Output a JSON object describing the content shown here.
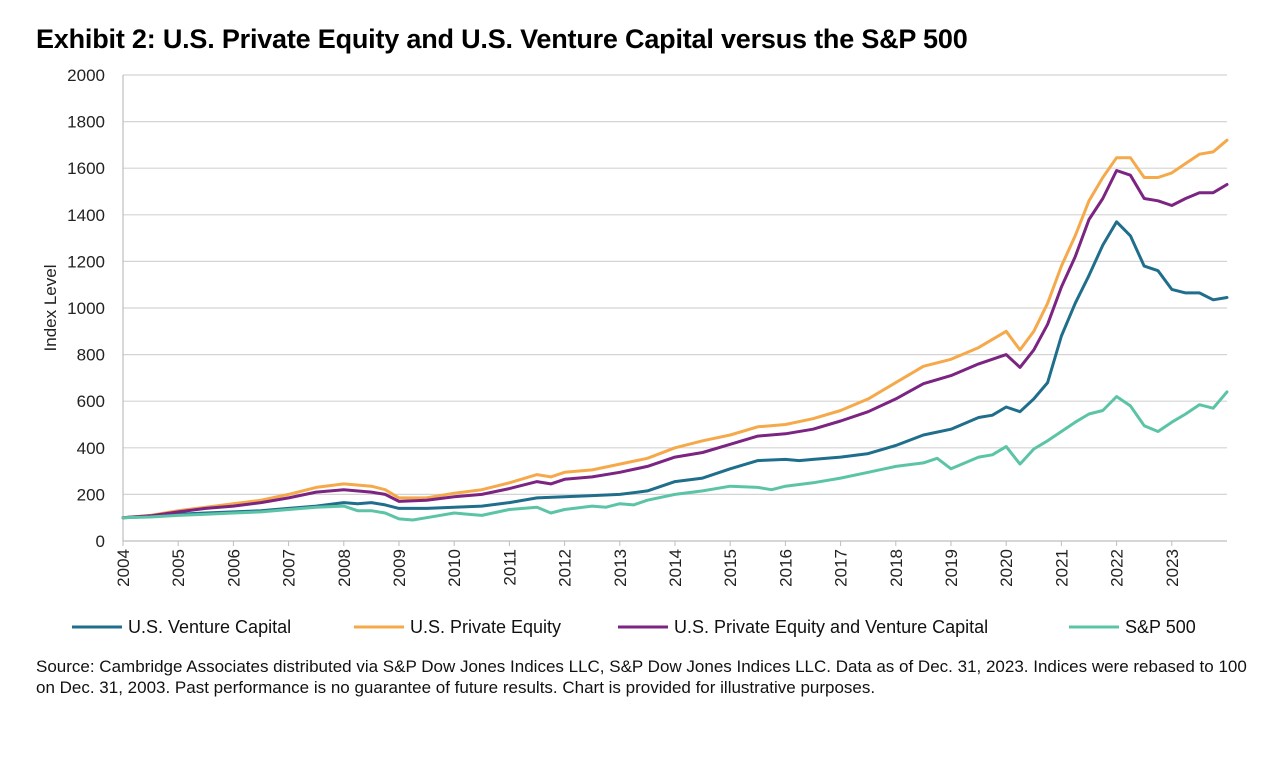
{
  "title": "Exhibit 2: U.S. Private Equity and U.S. Venture Capital versus the S&P 500",
  "source": "Source: Cambridge Associates distributed via S&P Dow Jones Indices LLC, S&P Dow Jones Indices LLC. Data as of Dec. 31, 2023. Indices were rebased to 100 on Dec. 31, 2003. Past performance is no guarantee of future results. Chart is provided for illustrative purposes.",
  "chart_data": {
    "type": "line",
    "ylabel": "Index Level",
    "xlabel": "",
    "ylim": [
      0,
      2000
    ],
    "yticks": [
      0,
      200,
      400,
      600,
      800,
      1000,
      1200,
      1400,
      1600,
      1800,
      2000
    ],
    "xticks": [
      "2004",
      "2005",
      "2006",
      "2007",
      "2008",
      "2009",
      "2010",
      "2011",
      "2012",
      "2013",
      "2014",
      "2015",
      "2016",
      "2017",
      "2018",
      "2019",
      "2020",
      "2021",
      "2022",
      "2023"
    ],
    "x_range": [
      "2004",
      "2023-Q4"
    ],
    "grid": true,
    "legend": "bottom",
    "series": [
      {
        "name": "U.S. Venture Capital",
        "color": "#1f6e8c",
        "points": [
          [
            2004,
            100
          ],
          [
            2004.5,
            105
          ],
          [
            2005,
            115
          ],
          [
            2005.5,
            120
          ],
          [
            2006,
            125
          ],
          [
            2006.5,
            130
          ],
          [
            2007,
            140
          ],
          [
            2007.5,
            150
          ],
          [
            2008,
            165
          ],
          [
            2008.25,
            160
          ],
          [
            2008.5,
            165
          ],
          [
            2008.75,
            155
          ],
          [
            2009,
            140
          ],
          [
            2009.5,
            140
          ],
          [
            2010,
            145
          ],
          [
            2010.5,
            150
          ],
          [
            2011,
            165
          ],
          [
            2011.5,
            185
          ],
          [
            2012,
            190
          ],
          [
            2012.5,
            195
          ],
          [
            2013,
            200
          ],
          [
            2013.5,
            215
          ],
          [
            2014,
            255
          ],
          [
            2014.5,
            270
          ],
          [
            2015,
            310
          ],
          [
            2015.5,
            345
          ],
          [
            2016,
            350
          ],
          [
            2016.25,
            345
          ],
          [
            2016.5,
            350
          ],
          [
            2017,
            360
          ],
          [
            2017.5,
            375
          ],
          [
            2018,
            410
          ],
          [
            2018.5,
            455
          ],
          [
            2019,
            480
          ],
          [
            2019.5,
            530
          ],
          [
            2019.75,
            540
          ],
          [
            2020,
            575
          ],
          [
            2020.25,
            555
          ],
          [
            2020.5,
            610
          ],
          [
            2020.75,
            680
          ],
          [
            2021,
            880
          ],
          [
            2021.25,
            1020
          ],
          [
            2021.5,
            1140
          ],
          [
            2021.75,
            1270
          ],
          [
            2022,
            1370
          ],
          [
            2022.25,
            1310
          ],
          [
            2022.5,
            1180
          ],
          [
            2022.75,
            1160
          ],
          [
            2023,
            1080
          ],
          [
            2023.25,
            1065
          ],
          [
            2023.5,
            1065
          ],
          [
            2023.75,
            1035
          ],
          [
            2024,
            1045
          ]
        ]
      },
      {
        "name": "U.S. Private Equity",
        "color": "#f5a94a",
        "points": [
          [
            2004,
            100
          ],
          [
            2004.5,
            110
          ],
          [
            2005,
            130
          ],
          [
            2005.5,
            145
          ],
          [
            2006,
            160
          ],
          [
            2006.5,
            175
          ],
          [
            2007,
            200
          ],
          [
            2007.5,
            230
          ],
          [
            2008,
            245
          ],
          [
            2008.5,
            235
          ],
          [
            2008.75,
            220
          ],
          [
            2009,
            185
          ],
          [
            2009.5,
            185
          ],
          [
            2010,
            205
          ],
          [
            2010.5,
            220
          ],
          [
            2011,
            250
          ],
          [
            2011.5,
            285
          ],
          [
            2011.75,
            275
          ],
          [
            2012,
            295
          ],
          [
            2012.5,
            305
          ],
          [
            2013,
            330
          ],
          [
            2013.5,
            355
          ],
          [
            2014,
            400
          ],
          [
            2014.5,
            430
          ],
          [
            2015,
            455
          ],
          [
            2015.5,
            490
          ],
          [
            2016,
            500
          ],
          [
            2016.5,
            525
          ],
          [
            2017,
            560
          ],
          [
            2017.5,
            610
          ],
          [
            2018,
            680
          ],
          [
            2018.5,
            750
          ],
          [
            2018.75,
            765
          ],
          [
            2019,
            780
          ],
          [
            2019.5,
            830
          ],
          [
            2020,
            900
          ],
          [
            2020.25,
            820
          ],
          [
            2020.5,
            900
          ],
          [
            2020.75,
            1020
          ],
          [
            2021,
            1180
          ],
          [
            2021.25,
            1310
          ],
          [
            2021.5,
            1460
          ],
          [
            2021.75,
            1560
          ],
          [
            2022,
            1645
          ],
          [
            2022.25,
            1645
          ],
          [
            2022.5,
            1560
          ],
          [
            2022.75,
            1560
          ],
          [
            2023,
            1580
          ],
          [
            2023.25,
            1620
          ],
          [
            2023.5,
            1660
          ],
          [
            2023.75,
            1670
          ],
          [
            2024,
            1720
          ]
        ]
      },
      {
        "name": "U.S. Private Equity and Venture Capital",
        "color": "#7b2482",
        "points": [
          [
            2004,
            100
          ],
          [
            2004.5,
            108
          ],
          [
            2005,
            125
          ],
          [
            2005.5,
            140
          ],
          [
            2006,
            150
          ],
          [
            2006.5,
            165
          ],
          [
            2007,
            185
          ],
          [
            2007.5,
            210
          ],
          [
            2008,
            220
          ],
          [
            2008.5,
            210
          ],
          [
            2008.75,
            200
          ],
          [
            2009,
            170
          ],
          [
            2009.5,
            175
          ],
          [
            2010,
            190
          ],
          [
            2010.5,
            200
          ],
          [
            2011,
            225
          ],
          [
            2011.5,
            255
          ],
          [
            2011.75,
            245
          ],
          [
            2012,
            265
          ],
          [
            2012.5,
            275
          ],
          [
            2013,
            295
          ],
          [
            2013.5,
            320
          ],
          [
            2014,
            360
          ],
          [
            2014.5,
            380
          ],
          [
            2015,
            415
          ],
          [
            2015.5,
            450
          ],
          [
            2016,
            460
          ],
          [
            2016.5,
            480
          ],
          [
            2017,
            515
          ],
          [
            2017.5,
            555
          ],
          [
            2018,
            610
          ],
          [
            2018.5,
            675
          ],
          [
            2019,
            710
          ],
          [
            2019.5,
            760
          ],
          [
            2020,
            800
          ],
          [
            2020.25,
            745
          ],
          [
            2020.5,
            820
          ],
          [
            2020.75,
            930
          ],
          [
            2021,
            1090
          ],
          [
            2021.25,
            1220
          ],
          [
            2021.5,
            1380
          ],
          [
            2021.75,
            1470
          ],
          [
            2022,
            1590
          ],
          [
            2022.25,
            1570
          ],
          [
            2022.5,
            1470
          ],
          [
            2022.75,
            1460
          ],
          [
            2023,
            1440
          ],
          [
            2023.25,
            1470
          ],
          [
            2023.5,
            1495
          ],
          [
            2023.75,
            1495
          ],
          [
            2024,
            1530
          ]
        ]
      },
      {
        "name": "S&P 500",
        "color": "#5cc4a6",
        "points": [
          [
            2004,
            100
          ],
          [
            2004.5,
            103
          ],
          [
            2005,
            110
          ],
          [
            2005.5,
            115
          ],
          [
            2006,
            120
          ],
          [
            2006.5,
            125
          ],
          [
            2007,
            135
          ],
          [
            2007.5,
            145
          ],
          [
            2008,
            150
          ],
          [
            2008.25,
            130
          ],
          [
            2008.5,
            130
          ],
          [
            2008.75,
            120
          ],
          [
            2009,
            95
          ],
          [
            2009.25,
            90
          ],
          [
            2009.5,
            100
          ],
          [
            2010,
            120
          ],
          [
            2010.25,
            115
          ],
          [
            2010.5,
            110
          ],
          [
            2011,
            135
          ],
          [
            2011.5,
            145
          ],
          [
            2011.75,
            120
          ],
          [
            2012,
            135
          ],
          [
            2012.5,
            150
          ],
          [
            2012.75,
            145
          ],
          [
            2013,
            160
          ],
          [
            2013.25,
            155
          ],
          [
            2013.5,
            175
          ],
          [
            2014,
            200
          ],
          [
            2014.5,
            215
          ],
          [
            2015,
            235
          ],
          [
            2015.5,
            230
          ],
          [
            2015.75,
            220
          ],
          [
            2016,
            235
          ],
          [
            2016.5,
            250
          ],
          [
            2017,
            270
          ],
          [
            2017.5,
            295
          ],
          [
            2018,
            320
          ],
          [
            2018.5,
            335
          ],
          [
            2018.75,
            355
          ],
          [
            2019,
            310
          ],
          [
            2019.5,
            360
          ],
          [
            2019.75,
            370
          ],
          [
            2020,
            405
          ],
          [
            2020.25,
            330
          ],
          [
            2020.5,
            395
          ],
          [
            2020.75,
            430
          ],
          [
            2021,
            470
          ],
          [
            2021.25,
            510
          ],
          [
            2021.5,
            545
          ],
          [
            2021.75,
            560
          ],
          [
            2022,
            620
          ],
          [
            2022.25,
            580
          ],
          [
            2022.5,
            495
          ],
          [
            2022.75,
            470
          ],
          [
            2023,
            510
          ],
          [
            2023.25,
            545
          ],
          [
            2023.5,
            585
          ],
          [
            2023.75,
            570
          ],
          [
            2024,
            640
          ]
        ]
      }
    ]
  }
}
